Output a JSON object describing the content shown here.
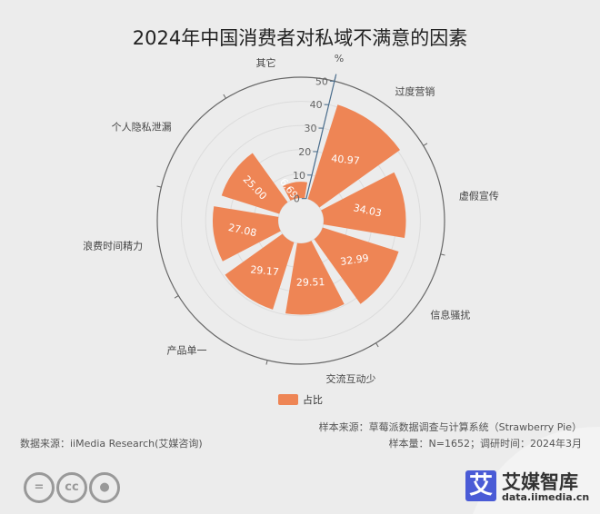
{
  "title": "2024年中国消费者对私域不满意的因素",
  "chart_data": {
    "type": "polar-bar",
    "title": "2024年中国消费者对私域不满意的因素",
    "radial_axis_unit": "%",
    "radial_ticks": [
      0,
      10,
      20,
      30,
      40,
      50
    ],
    "rlim": [
      0,
      50
    ],
    "categories": [
      "过度营销",
      "虚假宣传",
      "信息骚扰",
      "交流互动少",
      "产品单一",
      "浪费时间精力",
      "个人隐私泄漏",
      "其它"
    ],
    "series": [
      {
        "name": "占比",
        "values": [
          40.97,
          34.03,
          32.99,
          29.51,
          29.17,
          27.08,
          25.0,
          6.69
        ]
      }
    ],
    "legend_position": "bottom",
    "grid": true,
    "bar_color": "#ee8555"
  },
  "footer": {
    "data_source": "数据来源：iiMedia Research(艾媒咨询)",
    "sample_source": "样本来源：草莓派数据调查与计算系统（Strawberry Pie）",
    "sample_info": "样本量：N=1652；调研时间：2024年3月"
  },
  "brand": {
    "logo_glyph": "艾",
    "name": "艾媒智库",
    "url": "data.iimedia.cn"
  },
  "license_icons": [
    "nd-icon",
    "cc-icon",
    "by-icon"
  ]
}
